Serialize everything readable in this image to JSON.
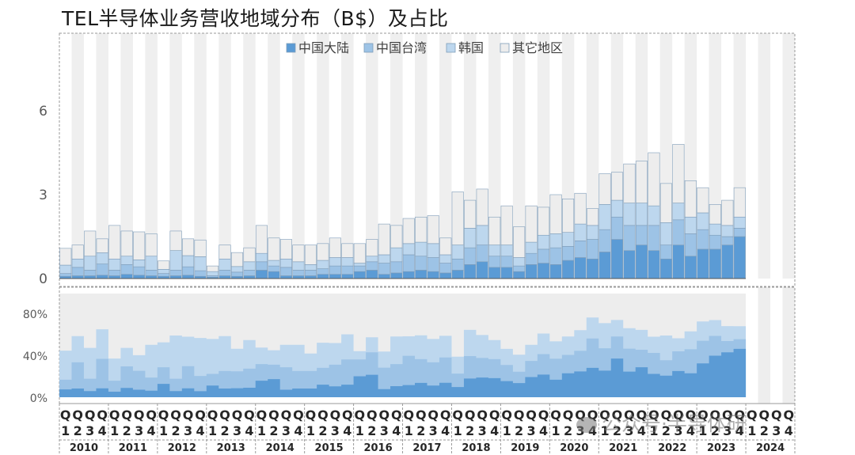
{
  "chart_data": {
    "type": "bar",
    "title": "TEL半导体业务营收地域分布（B$）及占比",
    "legend_position": "top",
    "years": [
      "2010",
      "2011",
      "2012",
      "2013",
      "2014",
      "2015",
      "2016",
      "2017",
      "2018",
      "2019",
      "2020",
      "2021",
      "2022",
      "2023",
      "2024"
    ],
    "quarter_labels": [
      "Q1",
      "Q2",
      "Q3",
      "Q4"
    ],
    "quarter_letter": "Q",
    "quarter_numbers": [
      "1",
      "2",
      "3",
      "4"
    ],
    "top_panel": {
      "yticks": [
        "0",
        "3",
        "6"
      ],
      "ylim": [
        0,
        9
      ]
    },
    "bottom_panel": {
      "yticks": [
        "0%",
        "40%",
        "80%"
      ],
      "ylim": [
        0,
        100
      ]
    },
    "series": [
      {
        "name": "中国大陆",
        "color": "#5b9bd5",
        "values": [
          0.08,
          0.1,
          0.1,
          0.12,
          0.1,
          0.15,
          0.12,
          0.1,
          0.08,
          0.1,
          0.12,
          0.08,
          0.05,
          0.1,
          0.08,
          0.1,
          0.3,
          0.25,
          0.1,
          0.1,
          0.1,
          0.15,
          0.15,
          0.15,
          0.25,
          0.3,
          0.15,
          0.2,
          0.25,
          0.3,
          0.25,
          0.2,
          0.3,
          0.5,
          0.6,
          0.4,
          0.4,
          0.25,
          0.5,
          0.55,
          0.5,
          0.65,
          0.75,
          0.7,
          0.95,
          1.4,
          1.0,
          1.2,
          1.0,
          0.7,
          1.2,
          0.8,
          1.05,
          1.05,
          1.2,
          1.5
        ]
      },
      {
        "name": "中国台湾",
        "color": "#9dc3e6",
        "values": [
          0.1,
          0.3,
          0.2,
          0.4,
          0.2,
          0.35,
          0.3,
          0.2,
          0.1,
          0.2,
          0.3,
          0.2,
          0.05,
          0.2,
          0.15,
          0.2,
          0.3,
          0.2,
          0.3,
          0.2,
          0.2,
          0.2,
          0.3,
          0.3,
          0.2,
          0.3,
          0.4,
          0.4,
          0.6,
          0.5,
          0.5,
          0.35,
          0.4,
          0.6,
          0.6,
          0.4,
          0.4,
          0.2,
          0.4,
          0.5,
          0.6,
          0.5,
          0.6,
          0.7,
          0.8,
          0.8,
          0.9,
          0.7,
          0.9,
          0.5,
          0.9,
          0.8,
          0.7,
          0.5,
          0.3,
          0.3
        ]
      },
      {
        "name": "韩国",
        "color": "#bdd7ee",
        "values": [
          0.3,
          0.3,
          0.5,
          0.4,
          0.4,
          0.3,
          0.25,
          0.5,
          0.15,
          0.7,
          0.4,
          0.5,
          0.15,
          0.4,
          0.2,
          0.3,
          0.3,
          0.2,
          0.3,
          0.3,
          0.2,
          0.3,
          0.3,
          0.3,
          0.1,
          0.2,
          0.3,
          0.5,
          0.4,
          0.5,
          0.5,
          0.3,
          0.5,
          0.7,
          0.7,
          0.4,
          0.4,
          0.3,
          0.4,
          0.5,
          0.5,
          0.5,
          0.6,
          0.5,
          0.9,
          0.6,
          0.8,
          0.8,
          0.7,
          0.8,
          0.6,
          0.6,
          0.6,
          0.4,
          0.4,
          0.4
        ]
      },
      {
        "name": "其它地区",
        "color": "#ededed",
        "values": [
          0.6,
          0.5,
          0.9,
          0.5,
          1.2,
          0.9,
          1.0,
          0.8,
          0.3,
          0.7,
          0.6,
          0.6,
          0.2,
          0.5,
          0.5,
          0.5,
          1.0,
          0.8,
          0.7,
          0.6,
          0.7,
          0.6,
          0.7,
          0.5,
          0.7,
          0.6,
          1.1,
          0.8,
          0.9,
          0.9,
          1.0,
          0.6,
          1.9,
          1.0,
          1.3,
          1.0,
          1.4,
          1.1,
          1.3,
          1.0,
          1.4,
          1.2,
          1.1,
          0.6,
          1.1,
          1.0,
          1.4,
          1.5,
          1.9,
          1.4,
          2.1,
          1.3,
          0.9,
          0.7,
          0.9,
          1.05
        ]
      }
    ]
  },
  "watermark": "公众号·半导体研"
}
